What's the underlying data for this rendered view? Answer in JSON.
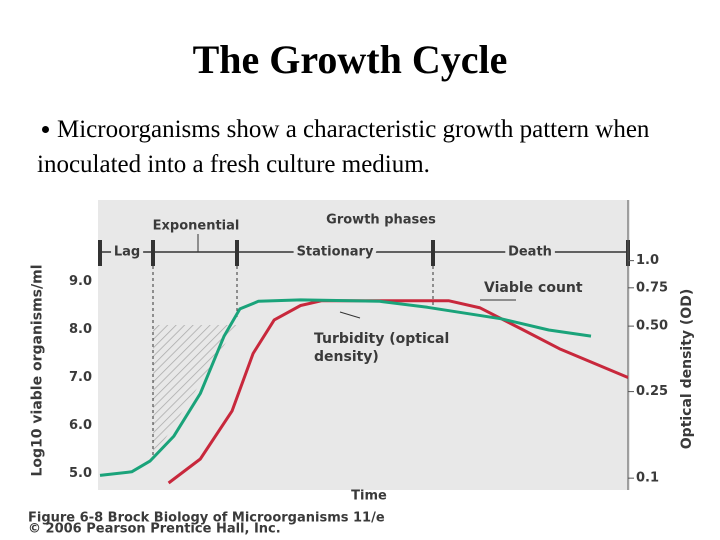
{
  "slide": {
    "title": "The Growth Cycle",
    "bullet": "Microorganisms show a characteristic growth pattern when inoculated into a fresh culture medium."
  },
  "chart_data": {
    "type": "line",
    "title": "Growth phases",
    "phases": [
      "Lag",
      "Exponential",
      "Stationary",
      "Death"
    ],
    "xlabel": "Time",
    "ylabel": "Log10 viable organisms/ml",
    "y2label": "Optical density (OD)",
    "xlim": [
      0,
      100
    ],
    "ylim": [
      4.8,
      10.7
    ],
    "yticks": [
      {
        "value": 5,
        "label": "5.0"
      },
      {
        "value": 6,
        "label": "6.0"
      },
      {
        "value": 7,
        "label": "7.0"
      },
      {
        "value": 8,
        "label": "8.0"
      },
      {
        "value": 9,
        "label": "9.0"
      }
    ],
    "y2lim": [
      0.095,
      1.9
    ],
    "y2log": true,
    "y2ticks": [
      0.1,
      0.25,
      {
        "value": 0.5,
        "label": "0.50"
      },
      0.75,
      {
        "value": 1,
        "label": "1.0"
      }
    ],
    "series": [
      {
        "name": "Viable count",
        "color": "#c8283c",
        "x": [
          13,
          19,
          25,
          29,
          33,
          38,
          42,
          57,
          66,
          72,
          80,
          87,
          100
        ],
        "values": [
          4.8,
          5.3,
          6.3,
          7.5,
          8.2,
          8.5,
          8.6,
          8.6,
          8.6,
          8.45,
          8.0,
          7.6,
          7.0
        ]
      },
      {
        "name": "Turbidity (optical density)",
        "color": "#1aa37a",
        "axis": "y2",
        "x": [
          0,
          6,
          9.5,
          14,
          19,
          23.5,
          26.5,
          30,
          38,
          53,
          62,
          76,
          85,
          93
        ],
        "values": [
          0.103,
          0.107,
          0.12,
          0.156,
          0.245,
          0.45,
          0.6,
          0.65,
          0.66,
          0.65,
          0.61,
          0.54,
          0.48,
          0.45
        ]
      }
    ],
    "caption": [
      "Figure 6-8 Brock Biology of Microorganisms 11/e",
      "© 2006 Pearson Prentice Hall, Inc."
    ]
  }
}
